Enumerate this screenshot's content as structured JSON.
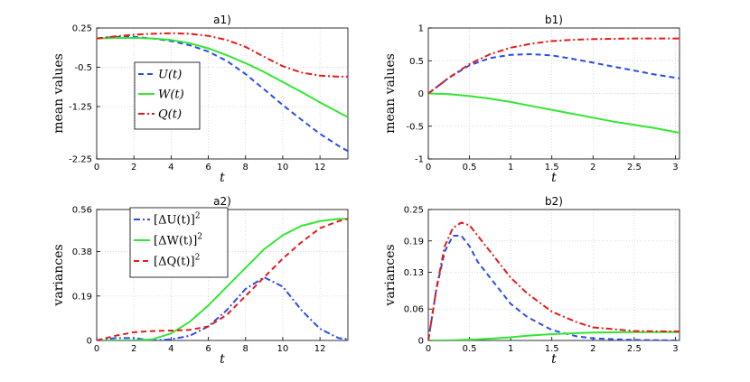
{
  "chart_data": [
    {
      "id": "a1",
      "type": "line",
      "title": "a1)",
      "xlabel": "t",
      "ylabel": "mean values",
      "xlim": [
        0,
        13.5
      ],
      "ylim": [
        -2.25,
        0.25
      ],
      "xticks": [
        0,
        2,
        4,
        6,
        8,
        10,
        12
      ],
      "xtick_labels": [
        "0",
        "2",
        "4",
        "6",
        "8",
        "10",
        "12"
      ],
      "yticks": [
        -2.25,
        -1.25,
        -0.5,
        0.25
      ],
      "ytick_labels": [
        "-2.25",
        "-1.25",
        "-0.5",
        "0.25"
      ],
      "grid": true,
      "legend_position": "left",
      "series": [
        {
          "name": "U(t)",
          "legend_label": "U(t)",
          "color": "#2b4de6",
          "dash": "dashed",
          "x": [
            0,
            1,
            2,
            3,
            4,
            5,
            6,
            7,
            8,
            9,
            10,
            11,
            12,
            13,
            13.5
          ],
          "y": [
            0.05,
            0.08,
            0.08,
            0.05,
            0.0,
            -0.08,
            -0.2,
            -0.38,
            -0.63,
            -0.92,
            -1.22,
            -1.5,
            -1.77,
            -2.0,
            -2.1
          ]
        },
        {
          "name": "W(t)",
          "legend_label": "W(t)",
          "color": "#33e633",
          "dash": "solid",
          "x": [
            0,
            1,
            2,
            3,
            4,
            5,
            6,
            7,
            8,
            9,
            10,
            11,
            12,
            13,
            13.5
          ],
          "y": [
            0.05,
            0.06,
            0.06,
            0.05,
            0.02,
            -0.04,
            -0.14,
            -0.27,
            -0.42,
            -0.59,
            -0.78,
            -0.97,
            -1.17,
            -1.36,
            -1.45
          ]
        },
        {
          "name": "Q(t)",
          "legend_label": "Q(t)",
          "color": "#e61a1a",
          "dash": "dashdot",
          "x": [
            0,
            1,
            2,
            3,
            4,
            5,
            6,
            7,
            8,
            9,
            10,
            11,
            12,
            13,
            13.5
          ],
          "y": [
            0.05,
            0.09,
            0.12,
            0.14,
            0.15,
            0.14,
            0.1,
            0.02,
            -0.11,
            -0.3,
            -0.48,
            -0.6,
            -0.66,
            -0.68,
            -0.68
          ]
        }
      ]
    },
    {
      "id": "b1",
      "type": "line",
      "title": "b1)",
      "xlabel": "t",
      "ylabel": "mean values",
      "xlim": [
        0,
        3.05
      ],
      "ylim": [
        -1,
        1
      ],
      "xticks": [
        0,
        0.5,
        1,
        1.5,
        2,
        2.5,
        3
      ],
      "xtick_labels": [
        "0",
        "0.5",
        "1",
        "1.5",
        "2",
        "2.5",
        "3"
      ],
      "yticks": [
        -1,
        -0.5,
        0,
        0.5,
        1
      ],
      "ytick_labels": [
        "-1",
        "-0.5",
        "0",
        "0.5",
        "1"
      ],
      "grid": true,
      "legend_position": "none",
      "series": [
        {
          "name": "U(t)",
          "color": "#2b4de6",
          "dash": "dashed",
          "x": [
            0,
            0.25,
            0.5,
            0.75,
            1,
            1.25,
            1.5,
            1.75,
            2,
            2.25,
            2.5,
            2.75,
            3.05
          ],
          "y": [
            0,
            0.24,
            0.43,
            0.54,
            0.59,
            0.6,
            0.58,
            0.53,
            0.47,
            0.41,
            0.35,
            0.29,
            0.23
          ]
        },
        {
          "name": "W(t)",
          "color": "#33e633",
          "dash": "solid",
          "x": [
            0,
            0.25,
            0.5,
            0.75,
            1,
            1.25,
            1.5,
            1.75,
            2,
            2.25,
            2.5,
            2.75,
            3.05
          ],
          "y": [
            0,
            -0.01,
            -0.04,
            -0.08,
            -0.13,
            -0.19,
            -0.25,
            -0.31,
            -0.37,
            -0.43,
            -0.48,
            -0.53,
            -0.6
          ]
        },
        {
          "name": "Q(t)",
          "color": "#e61a1a",
          "dash": "dashdot",
          "x": [
            0,
            0.25,
            0.5,
            0.75,
            1,
            1.25,
            1.5,
            1.75,
            2,
            2.25,
            2.5,
            2.75,
            3.05
          ],
          "y": [
            0,
            0.24,
            0.45,
            0.6,
            0.7,
            0.76,
            0.8,
            0.82,
            0.83,
            0.835,
            0.84,
            0.84,
            0.84
          ]
        }
      ]
    },
    {
      "id": "a2",
      "type": "line",
      "title": "a2)",
      "xlabel": "t",
      "ylabel": "variances",
      "xlim": [
        0,
        13.5
      ],
      "ylim": [
        0,
        0.56
      ],
      "xticks": [
        0,
        2,
        4,
        6,
        8,
        10,
        12
      ],
      "xtick_labels": [
        "0",
        "2",
        "4",
        "6",
        "8",
        "10",
        "12"
      ],
      "yticks": [
        0,
        0.19,
        0.38,
        0.56
      ],
      "ytick_labels": [
        "0",
        "0.19",
        "0.38",
        "0.56"
      ],
      "grid": true,
      "legend_position": "top-left",
      "series": [
        {
          "name": "[ΔU(t)]²",
          "legend_base": "[ΔU(t)]",
          "legend_sup": "2",
          "color": "#2b4de6",
          "dash": "dashdot",
          "x": [
            0,
            1,
            2,
            3,
            4,
            5,
            6,
            7,
            8,
            9,
            10,
            11,
            12,
            13,
            13.5
          ],
          "y": [
            0,
            0.01,
            0.01,
            0.0,
            0.005,
            0.02,
            0.06,
            0.13,
            0.22,
            0.27,
            0.23,
            0.13,
            0.05,
            0.01,
            0.005
          ]
        },
        {
          "name": "[ΔW(t)]²",
          "legend_base": "[ΔW(t)]",
          "legend_sup": "2",
          "color": "#33e633",
          "dash": "solid",
          "x": [
            0,
            1,
            2,
            3,
            4,
            5,
            6,
            7,
            8,
            9,
            10,
            11,
            12,
            13,
            13.5
          ],
          "y": [
            0,
            0.0,
            0.0,
            0.005,
            0.03,
            0.08,
            0.15,
            0.23,
            0.31,
            0.39,
            0.45,
            0.49,
            0.51,
            0.52,
            0.52
          ]
        },
        {
          "name": "[ΔQ(t)]²",
          "legend_base": "[ΔQ(t)]",
          "legend_sup": "2",
          "color": "#e61a1a",
          "dash": "dashed",
          "x": [
            0,
            1,
            2,
            3,
            4,
            5,
            6,
            7,
            8,
            9,
            10,
            11,
            12,
            13,
            13.5
          ],
          "y": [
            0,
            0.02,
            0.035,
            0.04,
            0.042,
            0.045,
            0.06,
            0.11,
            0.19,
            0.27,
            0.35,
            0.42,
            0.48,
            0.51,
            0.52
          ]
        }
      ]
    },
    {
      "id": "b2",
      "type": "line",
      "title": "b2)",
      "xlabel": "t",
      "ylabel": "variances",
      "xlim": [
        0,
        3.05
      ],
      "ylim": [
        0,
        0.25
      ],
      "xticks": [
        0,
        0.5,
        1,
        1.5,
        2,
        2.5,
        3
      ],
      "xtick_labels": [
        "0",
        "0.5",
        "1",
        "1.5",
        "2",
        "2.5",
        "3"
      ],
      "yticks": [
        0,
        0.06,
        0.13,
        0.19,
        0.25
      ],
      "ytick_labels": [
        "0",
        "0.06",
        "0.13",
        "0.19",
        "0.25"
      ],
      "grid": true,
      "legend_position": "none",
      "series": [
        {
          "name": "[ΔU(t)]²",
          "color": "#2b4de6",
          "dash": "dashed",
          "x": [
            0,
            0.1,
            0.2,
            0.3,
            0.4,
            0.5,
            0.6,
            0.8,
            1,
            1.2,
            1.5,
            1.8,
            2,
            2.5,
            3.05
          ],
          "y": [
            0,
            0.1,
            0.17,
            0.2,
            0.2,
            0.18,
            0.15,
            0.11,
            0.07,
            0.045,
            0.02,
            0.008,
            0.004,
            0.001,
            0
          ]
        },
        {
          "name": "[ΔW(t)]²",
          "color": "#33e633",
          "dash": "solid",
          "x": [
            0,
            0.2,
            0.4,
            0.6,
            0.8,
            1,
            1.2,
            1.5,
            1.8,
            2,
            2.5,
            3.05
          ],
          "y": [
            0,
            0,
            0.001,
            0.002,
            0.004,
            0.006,
            0.009,
            0.012,
            0.014,
            0.015,
            0.016,
            0.016
          ]
        },
        {
          "name": "[ΔQ(t)]²",
          "color": "#e61a1a",
          "dash": "dashdot",
          "x": [
            0,
            0.1,
            0.2,
            0.3,
            0.4,
            0.5,
            0.6,
            0.8,
            1,
            1.2,
            1.5,
            1.8,
            2,
            2.5,
            3.05
          ],
          "y": [
            0,
            0.1,
            0.18,
            0.215,
            0.225,
            0.22,
            0.2,
            0.16,
            0.12,
            0.09,
            0.055,
            0.035,
            0.025,
            0.018,
            0.017
          ]
        }
      ]
    }
  ]
}
